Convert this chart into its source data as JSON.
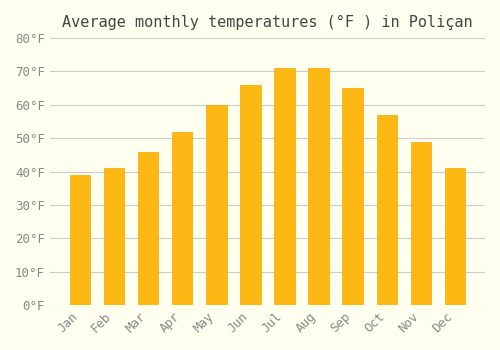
{
  "months": [
    "Jan",
    "Feb",
    "Mar",
    "Apr",
    "May",
    "Jun",
    "Jul",
    "Aug",
    "Sep",
    "Oct",
    "Nov",
    "Dec"
  ],
  "values": [
    39,
    41,
    46,
    52,
    60,
    66,
    71,
    71,
    65,
    57,
    49,
    41
  ],
  "bar_color_face": "#FDB813",
  "bar_color_edge": "#F5A800",
  "title": "Average monthly temperatures (°F ) in Poliçan",
  "ylabel": "",
  "ylim": [
    0,
    80
  ],
  "yticks": [
    0,
    10,
    20,
    30,
    40,
    50,
    60,
    70,
    80
  ],
  "ytick_labels": [
    "0°F",
    "10°F",
    "20°F",
    "30°F",
    "40°F",
    "50°F",
    "60°F",
    "70°F",
    "80°F"
  ],
  "background_color": "#FFFFF0",
  "grid_color": "#CCCCCC",
  "title_fontsize": 11,
  "tick_fontsize": 9,
  "font_family": "monospace"
}
